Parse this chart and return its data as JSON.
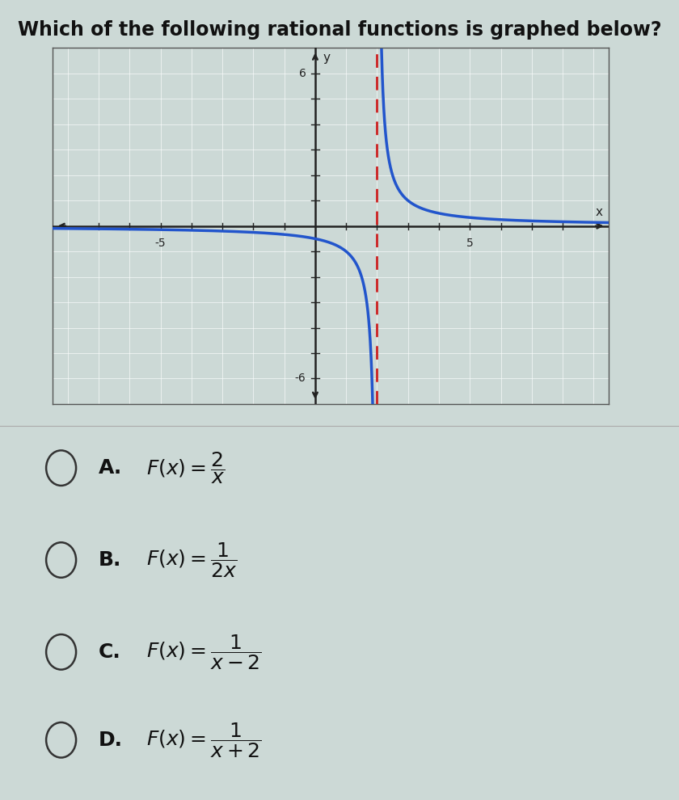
{
  "title": "Which of the following rational functions is graphed below?",
  "title_fontsize": 17,
  "title_color": "#111111",
  "bg_color": "#ccd9d6",
  "plot_bg_color": "#ccd9d6",
  "curve_color": "#2255cc",
  "asymptote_color": "#cc2222",
  "asymptote_x": 2,
  "xlim": [
    -8.5,
    9.5
  ],
  "ylim": [
    -7,
    7
  ],
  "choice_fontsize": 18,
  "choices": [
    {
      "label": "A.",
      "math": "$F(x) = \\dfrac{2}{x}$"
    },
    {
      "label": "B.",
      "math": "$F(x) = \\dfrac{1}{2x}$"
    },
    {
      "label": "C.",
      "math": "$F(x) = \\dfrac{1}{x-2}$"
    },
    {
      "label": "D.",
      "math": "$F(x) = \\dfrac{1}{x+2}$"
    }
  ]
}
